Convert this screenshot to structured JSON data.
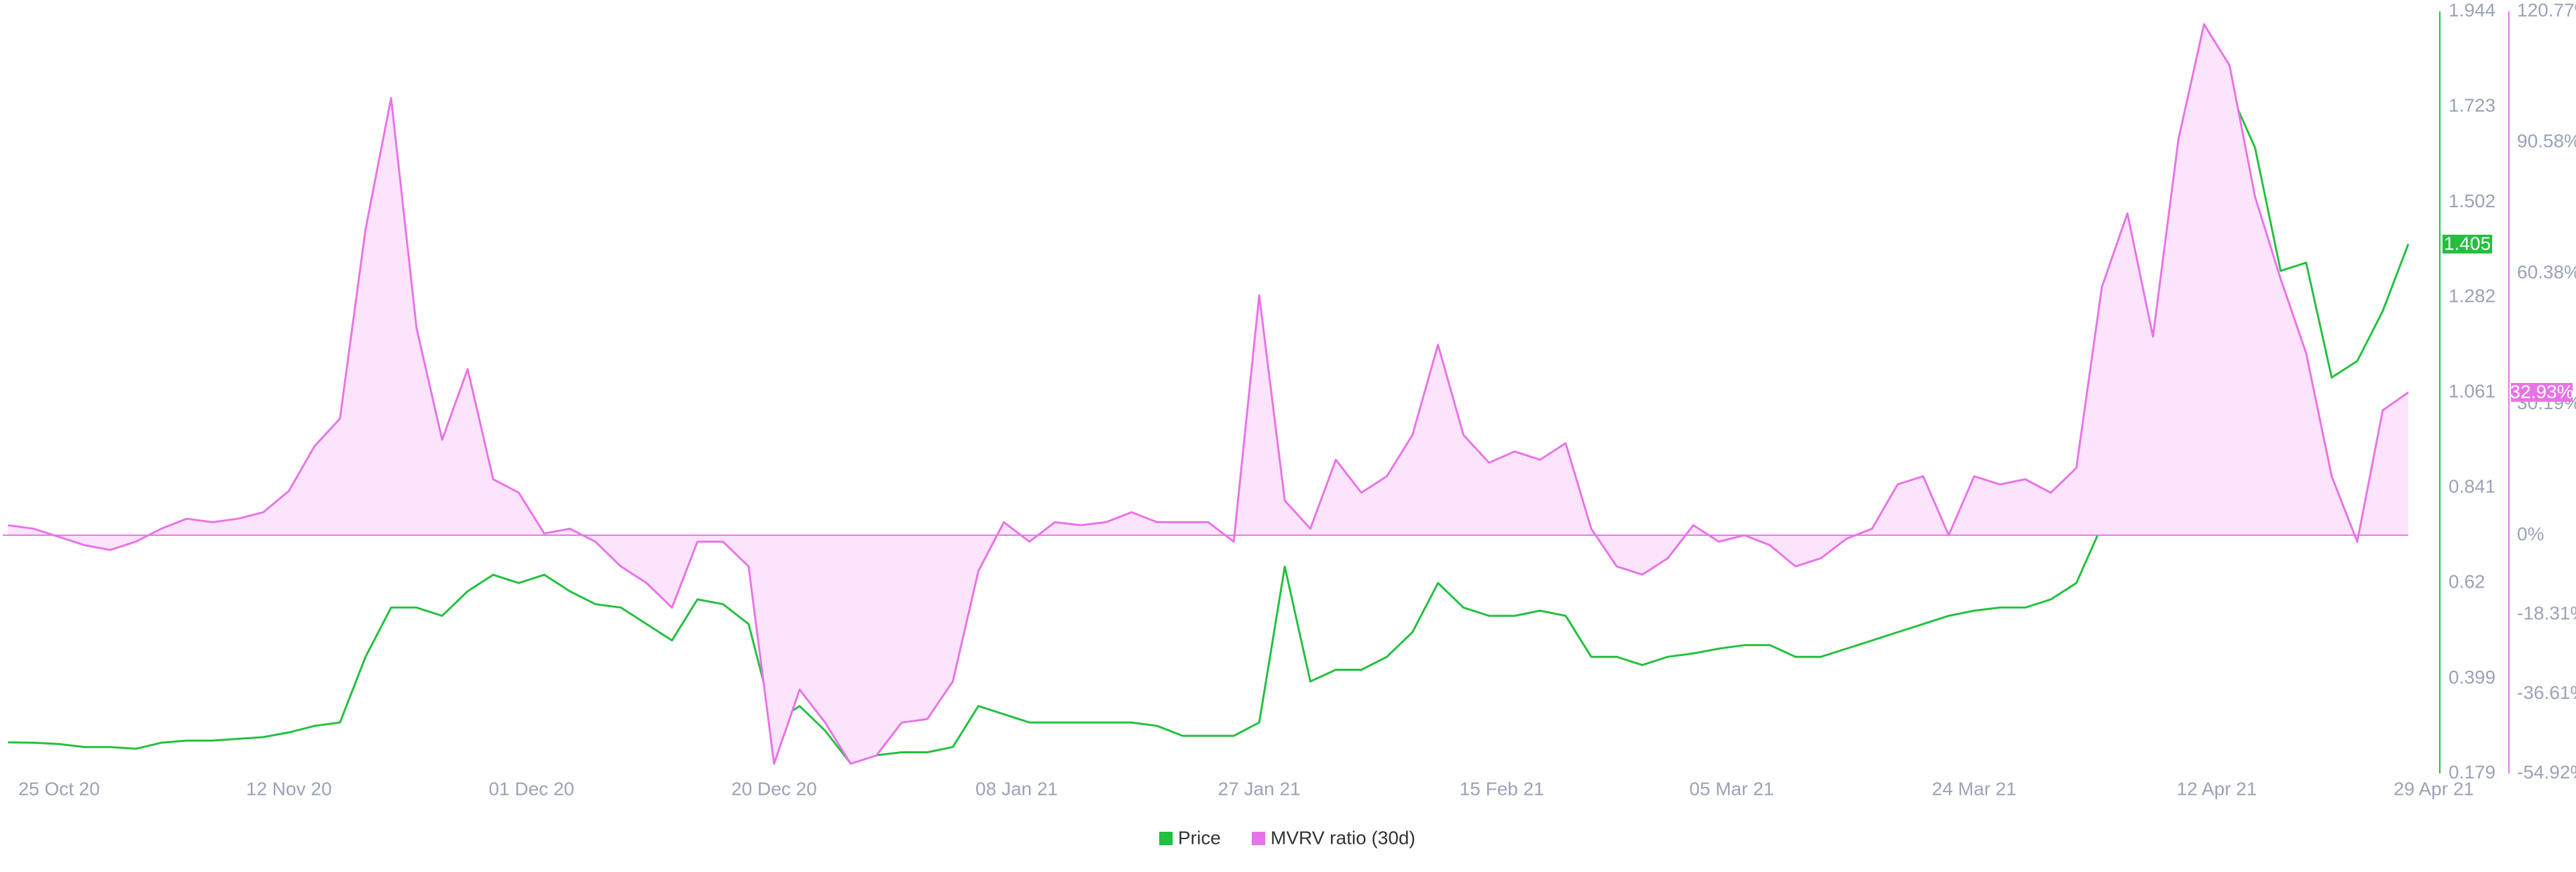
{
  "chart_data": {
    "type": "line",
    "x": [
      "2020-10-21",
      "2020-10-23",
      "2020-10-25",
      "2020-10-27",
      "2020-10-29",
      "2020-10-31",
      "2020-11-02",
      "2020-11-04",
      "2020-11-06",
      "2020-11-08",
      "2020-11-10",
      "2020-11-12",
      "2020-11-14",
      "2020-11-16",
      "2020-11-18",
      "2020-11-20",
      "2020-11-22",
      "2020-11-24",
      "2020-11-26",
      "2020-11-28",
      "2020-11-30",
      "2020-12-02",
      "2020-12-04",
      "2020-12-06",
      "2020-12-08",
      "2020-12-10",
      "2020-12-12",
      "2020-12-14",
      "2020-12-16",
      "2020-12-18",
      "2020-12-20",
      "2020-12-22",
      "2020-12-24",
      "2020-12-26",
      "2020-12-28",
      "2020-12-30",
      "2021-01-01",
      "2021-01-03",
      "2021-01-05",
      "2021-01-07",
      "2021-01-09",
      "2021-01-11",
      "2021-01-13",
      "2021-01-15",
      "2021-01-17",
      "2021-01-19",
      "2021-01-21",
      "2021-01-23",
      "2021-01-25",
      "2021-01-27",
      "2021-01-29",
      "2021-01-31",
      "2021-02-02",
      "2021-02-04",
      "2021-02-06",
      "2021-02-08",
      "2021-02-10",
      "2021-02-12",
      "2021-02-14",
      "2021-02-16",
      "2021-02-18",
      "2021-02-20",
      "2021-02-22",
      "2021-02-24",
      "2021-02-26",
      "2021-02-28",
      "2021-03-02",
      "2021-03-04",
      "2021-03-06",
      "2021-03-08",
      "2021-03-10",
      "2021-03-12",
      "2021-03-14",
      "2021-03-16",
      "2021-03-18",
      "2021-03-20",
      "2021-03-22",
      "2021-03-24",
      "2021-03-26",
      "2021-03-28",
      "2021-03-30",
      "2021-04-01",
      "2021-04-03",
      "2021-04-05",
      "2021-04-07",
      "2021-04-09",
      "2021-04-11",
      "2021-04-13",
      "2021-04-15",
      "2021-04-17",
      "2021-04-19",
      "2021-04-21",
      "2021-04-23",
      "2021-04-25",
      "2021-04-27"
    ],
    "xlim": [
      "2020-10-21",
      "2021-04-27"
    ],
    "xticks": [
      {
        "value": "2020-10-25",
        "label": "25 Oct 20"
      },
      {
        "value": "2020-11-12",
        "label": "12 Nov 20"
      },
      {
        "value": "2020-12-01",
        "label": "01 Dec 20"
      },
      {
        "value": "2020-12-20",
        "label": "20 Dec 20"
      },
      {
        "value": "2021-01-08",
        "label": "08 Jan 21"
      },
      {
        "value": "2021-01-27",
        "label": "27 Jan 21"
      },
      {
        "value": "2021-02-15",
        "label": "15 Feb 21"
      },
      {
        "value": "2021-03-05",
        "label": "05 Mar 21"
      },
      {
        "value": "2021-03-24",
        "label": "24 Mar 21"
      },
      {
        "value": "2021-04-12",
        "label": "12 Apr 21"
      },
      {
        "value": "2021-04-29",
        "label": "29 Apr 21"
      }
    ],
    "ylim": [
      0.179,
      1.944
    ],
    "yticks": [
      0.179,
      0.399,
      0.62,
      0.841,
      1.061,
      1.282,
      1.502,
      1.723,
      1.944
    ],
    "y2lim": [
      -54.92,
      120.77
    ],
    "y2ticks": [
      {
        "value": -54.92,
        "label": "-54.92%"
      },
      {
        "value": -36.61,
        "label": "-36.61%"
      },
      {
        "value": -18.31,
        "label": "-18.31%"
      },
      {
        "value": 0,
        "label": "0%"
      },
      {
        "value": 30.19,
        "label": "30.19%"
      },
      {
        "value": 60.38,
        "label": "60.38%"
      },
      {
        "value": 90.58,
        "label": "90.58%"
      },
      {
        "value": 120.77,
        "label": "120.77%"
      }
    ],
    "series": [
      {
        "name": "Price",
        "color": "#22c03e",
        "last_label": "1.405",
        "values": [
          0.251,
          0.25,
          0.247,
          0.24,
          0.24,
          0.236,
          0.25,
          0.255,
          0.255,
          0.259,
          0.263,
          0.274,
          0.289,
          0.297,
          0.449,
          0.563,
          0.563,
          0.544,
          0.601,
          0.639,
          0.62,
          0.639,
          0.601,
          0.571,
          0.563,
          0.525,
          0.487,
          0.582,
          0.571,
          0.525,
          0.297,
          0.335,
          0.278,
          0.202,
          0.221,
          0.228,
          0.228,
          0.24,
          0.335,
          0.316,
          0.297,
          0.297,
          0.297,
          0.297,
          0.297,
          0.289,
          0.266,
          0.266,
          0.266,
          0.297,
          0.658,
          0.392,
          0.419,
          0.419,
          0.449,
          0.506,
          0.62,
          0.563,
          0.544,
          0.544,
          0.556,
          0.544,
          0.449,
          0.449,
          0.43,
          0.449,
          0.457,
          0.468,
          0.476,
          0.476,
          0.449,
          0.449,
          0.468,
          0.487,
          0.506,
          0.525,
          0.544,
          0.556,
          0.563,
          0.563,
          0.582,
          0.62,
          0.753,
          1.0,
          1.039,
          1.286,
          1.666,
          1.761,
          1.628,
          1.343,
          1.362,
          1.096,
          1.134,
          1.25,
          1.405
        ]
      },
      {
        "name": "MVRV ratio (30d)",
        "color": "#e873e8",
        "axis": "y2",
        "last_label": "32.93%",
        "values": [
          2.3,
          1.5,
          -0.4,
          -2.3,
          -3.4,
          -1.5,
          1.5,
          3.8,
          3.0,
          3.8,
          5.3,
          10.2,
          20.5,
          26.9,
          70.5,
          100.8,
          47.7,
          22,
          38.3,
          12.9,
          9.8,
          0.4,
          1.5,
          -1.5,
          -7.2,
          -11,
          -16.7,
          -1.5,
          -1.5,
          -7.2,
          -52.7,
          -35.6,
          -43.2,
          -52.7,
          -50.8,
          -43.2,
          -42.4,
          -33.7,
          -8.3,
          3.0,
          -1.5,
          3.0,
          2.3,
          3.0,
          5.3,
          3.0,
          3.0,
          3.0,
          -1.5,
          55.3,
          8,
          1.5,
          17.4,
          9.8,
          13.6,
          23.1,
          43.9,
          23.1,
          16.7,
          19.3,
          17.4,
          21.2,
          1.5,
          -7.2,
          -9.1,
          -5.3,
          2.3,
          -1.5,
          0,
          -2.3,
          -7.2,
          -5.3,
          -0.8,
          1.5,
          11.7,
          13.6,
          0,
          13.6,
          11.7,
          12.9,
          9.8,
          15.5,
          57.2,
          74.2,
          45.8,
          91.3,
          117.8,
          108.3,
          78,
          59.1,
          42,
          13.6,
          -1.5,
          28.8,
          32.93
        ]
      }
    ],
    "area_fill": "#fce4fc",
    "tick_color": "#9aa3b5",
    "grid": false
  }
}
